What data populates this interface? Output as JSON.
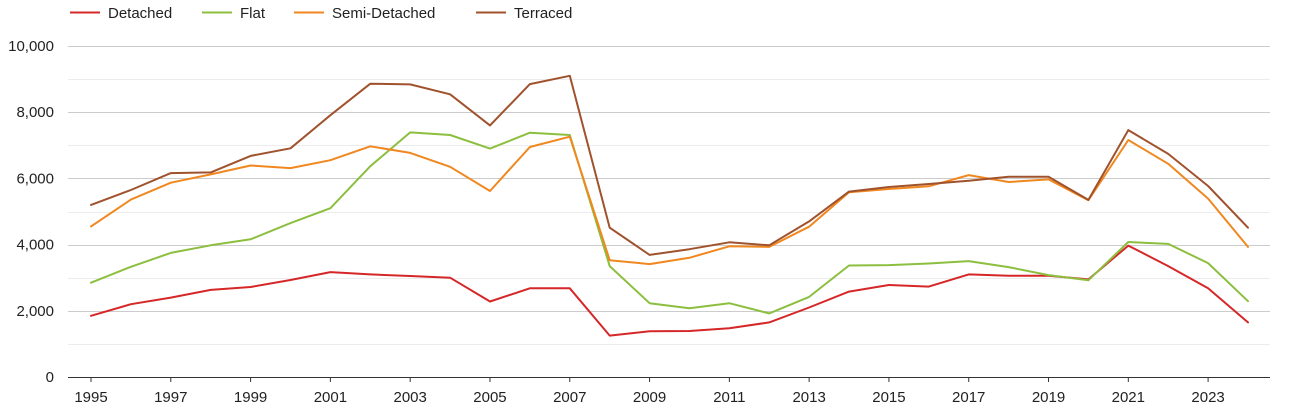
{
  "chart_data": {
    "type": "line",
    "title": "",
    "xlabel": "",
    "ylabel": "",
    "x": [
      1995,
      1996,
      1997,
      1998,
      1999,
      2000,
      2001,
      2002,
      2003,
      2004,
      2005,
      2006,
      2007,
      2008,
      2009,
      2010,
      2011,
      2012,
      2013,
      2014,
      2015,
      2016,
      2017,
      2018,
      2019,
      2020,
      2021,
      2022,
      2023,
      2024
    ],
    "xlim": [
      1995,
      2024
    ],
    "ylim": [
      0,
      10000
    ],
    "x_ticks": [
      1995,
      1997,
      1999,
      2001,
      2003,
      2005,
      2007,
      2009,
      2011,
      2013,
      2015,
      2017,
      2019,
      2021,
      2023
    ],
    "x_tick_labels": [
      "1995",
      "1997",
      "1999",
      "2001",
      "2003",
      "2005",
      "2007",
      "2009",
      "2011",
      "2013",
      "2015",
      "2017",
      "2019",
      "2021",
      "2023"
    ],
    "y_ticks": [
      0,
      2000,
      4000,
      6000,
      8000,
      10000
    ],
    "y_tick_labels": [
      "0",
      "2,000",
      "4,000",
      "6,000",
      "8,000",
      "10,000"
    ],
    "grid": true,
    "legend_position": "top-left",
    "series": [
      {
        "name": "Detached",
        "color": "#d62728",
        "values": [
          1850,
          2200,
          2400,
          2630,
          2720,
          2930,
          3170,
          3100,
          3050,
          3000,
          2280,
          2680,
          2680,
          1250,
          1380,
          1390,
          1470,
          1650,
          2100,
          2580,
          2780,
          2730,
          3100,
          3060,
          3060,
          2950,
          3970,
          3350,
          2680,
          1650
        ]
      },
      {
        "name": "Flat",
        "color": "#8cbf3f",
        "values": [
          2850,
          3330,
          3750,
          3980,
          4160,
          4650,
          5100,
          6370,
          7390,
          7310,
          6900,
          7380,
          7310,
          3350,
          2230,
          2080,
          2230,
          1920,
          2420,
          3370,
          3380,
          3430,
          3500,
          3320,
          3080,
          2920,
          4080,
          4020,
          3440,
          2290
        ]
      },
      {
        "name": "Semi-Detached",
        "color": "#f0871f",
        "values": [
          4550,
          5360,
          5870,
          6120,
          6390,
          6310,
          6550,
          6970,
          6770,
          6350,
          5620,
          6950,
          7260,
          3530,
          3410,
          3600,
          3950,
          3930,
          4540,
          5580,
          5680,
          5760,
          6100,
          5890,
          5970,
          5340,
          7160,
          6440,
          5390,
          3930
        ]
      },
      {
        "name": "Terraced",
        "color": "#a0522d",
        "values": [
          5200,
          5650,
          6160,
          6180,
          6680,
          6910,
          7910,
          8860,
          8840,
          8540,
          7600,
          8850,
          9100,
          4510,
          3690,
          3860,
          4070,
          3980,
          4700,
          5600,
          5740,
          5830,
          5930,
          6050,
          6050,
          5350,
          7460,
          6740,
          5770,
          4510
        ]
      }
    ]
  }
}
